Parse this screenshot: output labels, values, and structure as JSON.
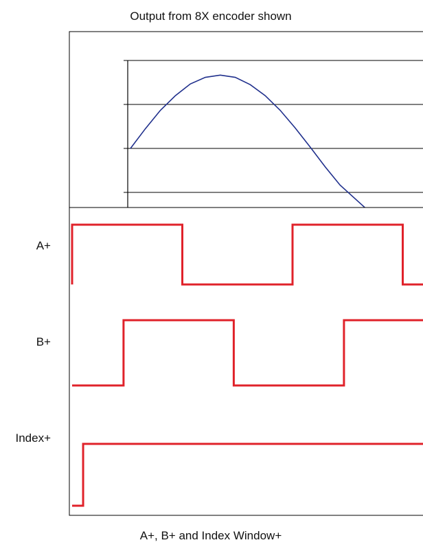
{
  "chart_data": [
    {
      "type": "line",
      "title": "Output from 8X encoder shown",
      "xlabel": "",
      "ylabel": "",
      "ylim": [
        -0.9,
        1.2
      ],
      "xlim": [
        0,
        1
      ],
      "yticks": [
        "1.2",
        "0.6",
        "0",
        "-0.6"
      ],
      "ytick_values": [
        1.2,
        0.6,
        0,
        -0.6
      ],
      "grid": true,
      "series": [
        {
          "color": "#1f2f8c",
          "x": [
            0,
            0.05,
            0.1,
            0.15,
            0.2,
            0.25,
            0.3,
            0.35,
            0.4,
            0.45,
            0.5,
            0.55,
            0.6,
            0.65,
            0.7,
            0.8,
            0.9
          ],
          "y": [
            0,
            0.27,
            0.52,
            0.72,
            0.88,
            0.97,
            1.0,
            0.97,
            0.87,
            0.72,
            0.52,
            0.28,
            0.02,
            -0.25,
            -0.5,
            -0.87,
            -1.0
          ]
        }
      ]
    },
    {
      "type": "line",
      "title": "A+, B+ and Index Window+",
      "series": [
        {
          "name": "A+",
          "color": "#e0222a",
          "x": [
            0,
            0,
            0.3,
            0.3,
            0.6,
            0.6,
            0.9,
            0.9,
            1.0
          ],
          "y": [
            0,
            1,
            1,
            0,
            0,
            1,
            1,
            0,
            0
          ]
        },
        {
          "name": "B+",
          "color": "#e0222a",
          "x": [
            0,
            0.14,
            0.14,
            0.44,
            0.44,
            0.74,
            0.74,
            1.0
          ],
          "y": [
            0,
            0,
            1,
            1,
            0,
            0,
            1,
            1
          ]
        },
        {
          "name": "Index+",
          "color": "#e0222a",
          "x": [
            0,
            0.03,
            0.03,
            0.98,
            0.98,
            1.0
          ],
          "y": [
            0,
            0,
            1,
            1,
            0,
            0
          ]
        }
      ]
    }
  ]
}
